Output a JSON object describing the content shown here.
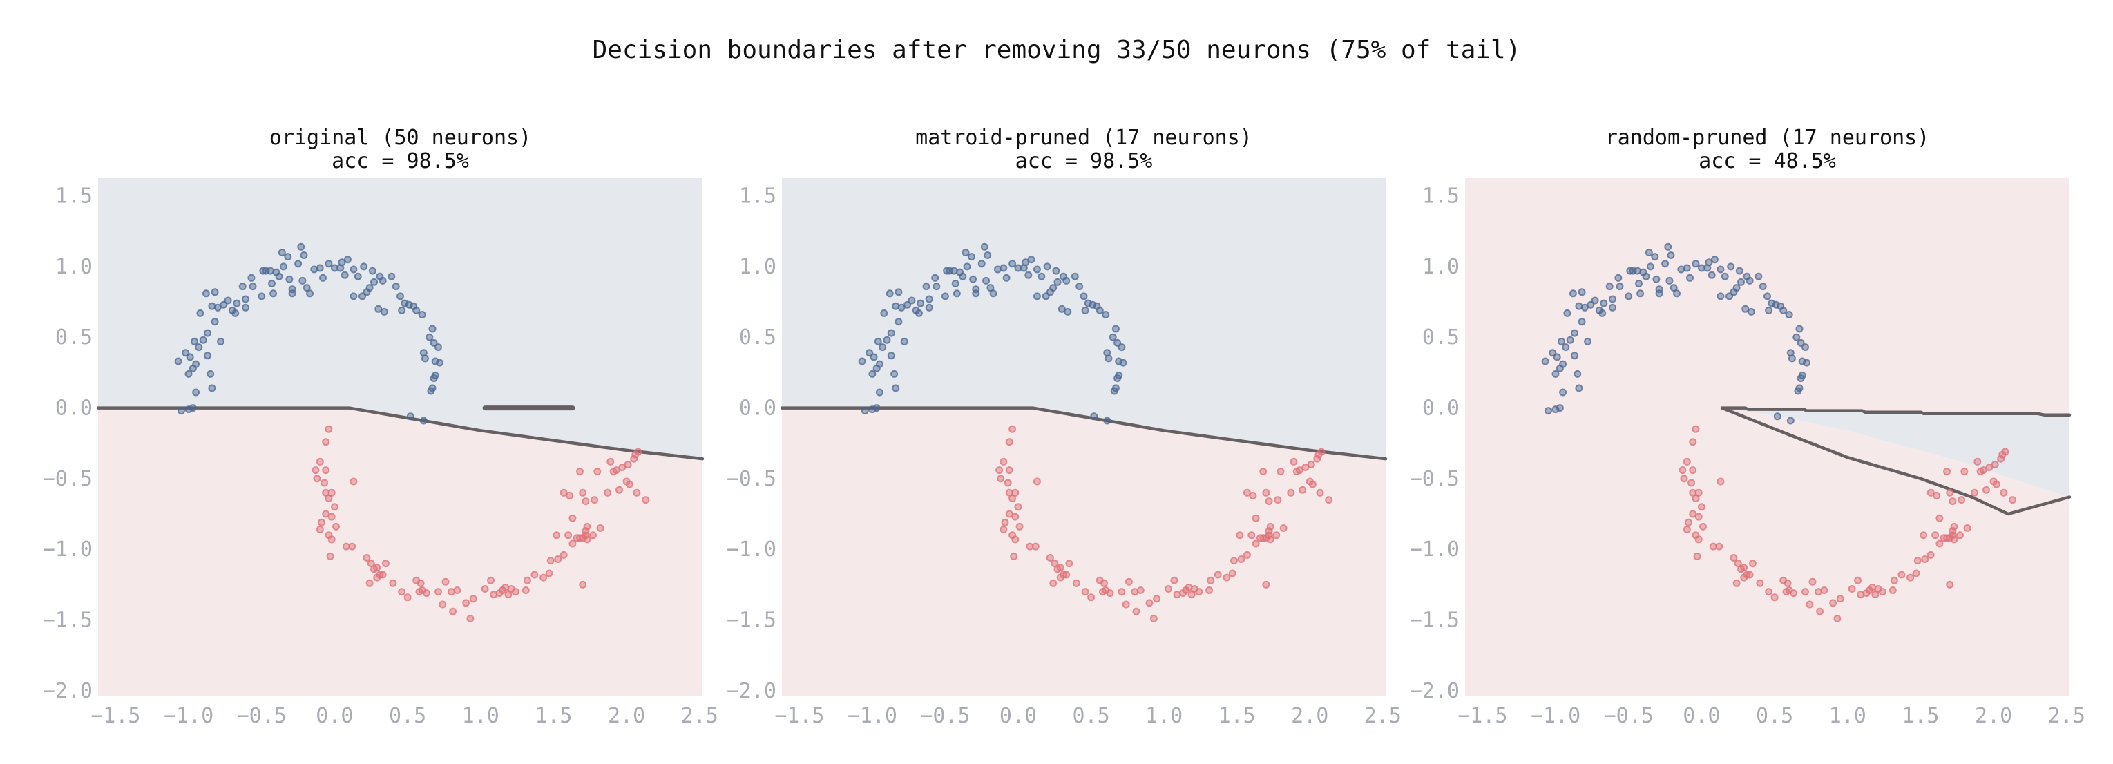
{
  "figure": {
    "suptitle": "Decision boundaries after removing 33/50 neurons (75% of tail)",
    "colors": {
      "class0_region": "#e5e8ed",
      "class1_region": "#f6e9ea",
      "class0_point": "#4a6591",
      "class1_point": "#de6f76",
      "boundary": "#666062",
      "tick_label": "#a9adb3",
      "title_text": "#111111"
    }
  },
  "chart_data": [
    {
      "type": "scatter",
      "title": "original (50 neurons)",
      "subtitle": "acc = 98.5%",
      "neurons": 50,
      "accuracy_pct": 98.5,
      "xlabel": "",
      "ylabel": "",
      "xlim": [
        -1.62,
        2.52
      ],
      "ylim": [
        -2.04,
        1.63
      ],
      "xticks": [
        "-1.5",
        "-1.0",
        "-0.5",
        "0.0",
        "0.5",
        "1.0",
        "1.5",
        "2.0",
        "2.5"
      ],
      "yticks": [
        "1.5",
        "1.0",
        "0.5",
        "0.0",
        "-0.5",
        "-1.0",
        "-1.5",
        "-2.0"
      ],
      "grid": false,
      "background_class": 0,
      "boundary": [
        [
          [
            -1.62,
            0.0
          ],
          [
            0.1,
            0.0
          ],
          [
            0.55,
            -0.08
          ],
          [
            1.0,
            -0.16
          ],
          [
            1.5,
            -0.23
          ],
          [
            2.0,
            -0.3
          ],
          [
            2.52,
            -0.36
          ]
        ],
        [
          [
            1.03,
            0.0
          ],
          [
            1.63,
            0.0
          ]
        ]
      ],
      "region_class1_polygon": [
        [
          -1.62,
          0.0
        ],
        [
          0.1,
          0.0
        ],
        [
          0.55,
          -0.08
        ],
        [
          1.0,
          -0.16
        ],
        [
          1.5,
          -0.23
        ],
        [
          2.0,
          -0.3
        ],
        [
          2.52,
          -0.36
        ],
        [
          2.52,
          -2.04
        ],
        [
          -1.62,
          -2.04
        ]
      ],
      "region_class0_polygon": []
    },
    {
      "type": "scatter",
      "title": "matroid-pruned (17 neurons)",
      "subtitle": "acc = 98.5%",
      "neurons": 17,
      "accuracy_pct": 98.5,
      "xlabel": "",
      "ylabel": "",
      "xlim": [
        -1.62,
        2.52
      ],
      "ylim": [
        -2.04,
        1.63
      ],
      "xticks": [
        "-1.5",
        "-1.0",
        "-0.5",
        "0.0",
        "0.5",
        "1.0",
        "1.5",
        "2.0",
        "2.5"
      ],
      "yticks": [
        "1.5",
        "1.0",
        "0.5",
        "0.0",
        "-0.5",
        "-1.0",
        "-1.5",
        "-2.0"
      ],
      "grid": false,
      "background_class": 0,
      "boundary": [
        [
          [
            -1.62,
            0.0
          ],
          [
            0.1,
            0.0
          ],
          [
            0.55,
            -0.08
          ],
          [
            1.0,
            -0.16
          ],
          [
            1.5,
            -0.23
          ],
          [
            2.0,
            -0.3
          ],
          [
            2.52,
            -0.36
          ]
        ]
      ],
      "region_class1_polygon": [
        [
          -1.62,
          0.0
        ],
        [
          0.1,
          0.0
        ],
        [
          0.55,
          -0.08
        ],
        [
          1.0,
          -0.16
        ],
        [
          1.5,
          -0.23
        ],
        [
          2.0,
          -0.3
        ],
        [
          2.52,
          -0.36
        ],
        [
          2.52,
          -2.04
        ],
        [
          -1.62,
          -2.04
        ]
      ],
      "region_class0_polygon": []
    },
    {
      "type": "scatter",
      "title": "random-pruned (17 neurons)",
      "subtitle": "acc = 48.5%",
      "neurons": 17,
      "accuracy_pct": 48.5,
      "xlabel": "",
      "ylabel": "",
      "xlim": [
        -1.62,
        2.52
      ],
      "ylim": [
        -2.04,
        1.63
      ],
      "xticks": [
        "-1.5",
        "-1.0",
        "-0.5",
        "0.0",
        "0.5",
        "1.0",
        "1.5",
        "2.0",
        "2.5"
      ],
      "yticks": [
        "1.5",
        "1.0",
        "0.5",
        "0.0",
        "-0.5",
        "-1.0",
        "-1.5",
        "-2.0"
      ],
      "grid": false,
      "background_class": 1,
      "boundary": [
        [
          [
            0.14,
            0.0
          ],
          [
            0.3,
            0.0
          ],
          [
            0.32,
            -0.01
          ],
          [
            0.7,
            -0.01
          ],
          [
            0.72,
            -0.02
          ],
          [
            1.1,
            -0.02
          ],
          [
            1.12,
            -0.03
          ],
          [
            1.5,
            -0.03
          ],
          [
            1.52,
            -0.04
          ],
          [
            2.3,
            -0.04
          ],
          [
            2.35,
            -0.05
          ],
          [
            2.52,
            -0.05
          ]
        ],
        [
          [
            0.14,
            0.0
          ],
          [
            0.6,
            -0.19
          ],
          [
            1.0,
            -0.35
          ],
          [
            1.5,
            -0.5
          ],
          [
            1.85,
            -0.63
          ],
          [
            2.1,
            -0.75
          ],
          [
            2.52,
            -0.63
          ]
        ]
      ],
      "region_class1_polygon": [],
      "region_class0_polygon": [
        [
          0.14,
          0.0
        ],
        [
          0.3,
          0.0
        ],
        [
          0.32,
          -0.01
        ],
        [
          0.7,
          -0.01
        ],
        [
          0.72,
          -0.02
        ],
        [
          1.1,
          -0.02
        ],
        [
          1.12,
          -0.03
        ],
        [
          1.5,
          -0.03
        ],
        [
          1.52,
          -0.04
        ],
        [
          2.3,
          -0.04
        ],
        [
          2.35,
          -0.05
        ],
        [
          2.52,
          -0.05
        ],
        [
          2.52,
          -0.63
        ],
        [
          2.1,
          -0.49
        ],
        [
          1.85,
          -0.4
        ],
        [
          1.5,
          -0.3
        ],
        [
          1.0,
          -0.16
        ],
        [
          0.6,
          -0.07
        ]
      ]
    }
  ],
  "points": {
    "class0": [
      [
        -1.07,
        0.33
      ],
      [
        -1.02,
        0.39
      ],
      [
        -0.99,
        0.36
      ],
      [
        -0.97,
        0.28
      ],
      [
        -1.0,
        0.24
      ],
      [
        -0.95,
        0.31
      ],
      [
        -0.93,
        0.43
      ],
      [
        -0.96,
        0.47
      ],
      [
        -0.9,
        0.48
      ],
      [
        -0.87,
        0.37
      ],
      [
        -0.85,
        0.24
      ],
      [
        -0.87,
        0.53
      ],
      [
        -0.82,
        0.61
      ],
      [
        -0.92,
        0.67
      ],
      [
        -0.78,
        0.47
      ],
      [
        -0.88,
        0.81
      ],
      [
        -0.82,
        0.82
      ],
      [
        -0.84,
        0.72
      ],
      [
        -0.8,
        0.71
      ],
      [
        -0.76,
        0.73
      ],
      [
        -0.7,
        0.69
      ],
      [
        -0.68,
        0.67
      ],
      [
        -0.67,
        0.74
      ],
      [
        -0.63,
        0.86
      ],
      [
        -0.61,
        0.77
      ],
      [
        -0.61,
        0.71
      ],
      [
        -0.57,
        0.92
      ],
      [
        -0.49,
        0.97
      ],
      [
        -0.47,
        0.97
      ],
      [
        -0.44,
        0.97
      ],
      [
        -0.43,
        0.88
      ],
      [
        -0.42,
        0.81
      ],
      [
        -0.4,
        0.96
      ],
      [
        -0.38,
        0.93
      ],
      [
        -0.35,
        1.0
      ],
      [
        -0.31,
        0.91
      ],
      [
        -0.36,
        1.1
      ],
      [
        -0.32,
        1.07
      ],
      [
        -0.29,
        0.81
      ],
      [
        -0.29,
        0.84
      ],
      [
        -0.25,
        1.02
      ],
      [
        -0.23,
        1.14
      ],
      [
        -0.21,
        1.08
      ],
      [
        -0.22,
        0.9
      ],
      [
        -0.19,
        0.85
      ],
      [
        -0.17,
        0.81
      ],
      [
        -0.1,
        0.99
      ],
      [
        -0.08,
        0.92
      ],
      [
        -0.04,
        1.02
      ],
      [
        0.0,
        0.99
      ],
      [
        0.04,
        0.99
      ],
      [
        0.07,
        0.94
      ],
      [
        0.05,
        1.03
      ],
      [
        0.13,
        0.98
      ],
      [
        0.16,
        0.93
      ],
      [
        0.2,
        1.0
      ],
      [
        0.13,
        0.79
      ],
      [
        0.19,
        0.79
      ],
      [
        0.22,
        0.82
      ],
      [
        0.27,
        0.89
      ],
      [
        0.31,
        0.93
      ],
      [
        0.33,
        0.9
      ],
      [
        0.3,
        0.7
      ],
      [
        0.34,
        0.68
      ],
      [
        0.45,
        0.79
      ],
      [
        0.48,
        0.74
      ],
      [
        0.46,
        0.69
      ],
      [
        0.54,
        0.72
      ],
      [
        0.51,
        0.73
      ],
      [
        0.56,
        0.69
      ],
      [
        0.6,
        0.66
      ],
      [
        0.67,
        0.56
      ],
      [
        0.65,
        0.5
      ],
      [
        0.62,
        0.35
      ],
      [
        0.68,
        0.46
      ],
      [
        0.61,
        0.39
      ],
      [
        0.69,
        0.33
      ],
      [
        0.72,
        0.32
      ],
      [
        0.71,
        0.43
      ],
      [
        0.69,
        0.23
      ],
      [
        0.68,
        0.21
      ],
      [
        0.67,
        0.14
      ],
      [
        0.66,
        0.12
      ],
      [
        0.52,
        -0.06
      ],
      [
        0.61,
        -0.09
      ],
      [
        -1.05,
        -0.02
      ],
      [
        -1.0,
        -0.01
      ],
      [
        -0.97,
        0.0
      ],
      [
        -0.95,
        0.11
      ],
      [
        -0.84,
        0.14
      ],
      [
        0.39,
        0.93
      ],
      [
        0.42,
        0.86
      ],
      [
        0.26,
        0.97
      ],
      [
        0.09,
        1.05
      ],
      [
        -0.14,
        0.98
      ],
      [
        -0.56,
        0.86
      ],
      [
        -0.73,
        0.76
      ],
      [
        -0.5,
        0.79
      ],
      [
        0.24,
        0.85
      ]
    ],
    "class1": [
      [
        -0.1,
        -0.38
      ],
      [
        -0.13,
        -0.44
      ],
      [
        -0.06,
        -0.44
      ],
      [
        -0.12,
        -0.5
      ],
      [
        -0.07,
        -0.53
      ],
      [
        -0.06,
        -0.6
      ],
      [
        -0.02,
        -0.6
      ],
      [
        -0.04,
        -0.64
      ],
      [
        0.0,
        -0.7
      ],
      [
        -0.06,
        -0.75
      ],
      [
        -0.02,
        -0.77
      ],
      [
        0.01,
        -0.84
      ],
      [
        -0.09,
        -0.81
      ],
      [
        -0.1,
        -0.86
      ],
      [
        -0.04,
        -0.9
      ],
      [
        -0.02,
        -0.93
      ],
      [
        -0.03,
        -1.05
      ],
      [
        -0.04,
        -0.15
      ],
      [
        -0.06,
        -0.24
      ],
      [
        0.13,
        -0.52
      ],
      [
        0.08,
        -0.98
      ],
      [
        0.12,
        -0.98
      ],
      [
        0.22,
        -1.06
      ],
      [
        0.25,
        -1.1
      ],
      [
        0.29,
        -1.13
      ],
      [
        0.27,
        -1.14
      ],
      [
        0.31,
        -1.18
      ],
      [
        0.24,
        -1.24
      ],
      [
        0.29,
        -1.2
      ],
      [
        0.35,
        -1.1
      ],
      [
        0.33,
        -1.18
      ],
      [
        0.4,
        -1.24
      ],
      [
        0.5,
        -1.34
      ],
      [
        0.46,
        -1.3
      ],
      [
        0.56,
        -1.22
      ],
      [
        0.59,
        -1.24
      ],
      [
        0.58,
        -1.3
      ],
      [
        0.6,
        -1.29
      ],
      [
        0.63,
        -1.31
      ],
      [
        0.71,
        -1.3
      ],
      [
        0.74,
        -1.39
      ],
      [
        0.81,
        -1.44
      ],
      [
        0.84,
        -1.29
      ],
      [
        0.9,
        -1.38
      ],
      [
        0.93,
        -1.49
      ],
      [
        0.95,
        -1.35
      ],
      [
        1.03,
        -1.28
      ],
      [
        1.07,
        -1.22
      ],
      [
        1.09,
        -1.32
      ],
      [
        1.13,
        -1.31
      ],
      [
        1.15,
        -1.29
      ],
      [
        1.17,
        -1.27
      ],
      [
        1.19,
        -1.32
      ],
      [
        1.21,
        -1.28
      ],
      [
        1.24,
        -1.3
      ],
      [
        1.31,
        -1.29
      ],
      [
        1.32,
        -1.22
      ],
      [
        1.37,
        -1.18
      ],
      [
        1.43,
        -1.2
      ],
      [
        1.47,
        -1.17
      ],
      [
        1.48,
        -1.08
      ],
      [
        1.53,
        -1.07
      ],
      [
        1.57,
        -1.04
      ],
      [
        1.63,
        -0.96
      ],
      [
        1.6,
        -0.9
      ],
      [
        1.66,
        -0.92
      ],
      [
        1.68,
        -0.92
      ],
      [
        1.7,
        -0.92
      ],
      [
        1.72,
        -0.9
      ],
      [
        1.73,
        -0.93
      ],
      [
        1.72,
        -0.87
      ],
      [
        1.73,
        -0.84
      ],
      [
        1.77,
        -0.9
      ],
      [
        1.82,
        -0.85
      ],
      [
        1.7,
        -1.25
      ],
      [
        1.52,
        -0.9
      ],
      [
        1.57,
        -0.6
      ],
      [
        1.61,
        -0.62
      ],
      [
        1.7,
        -0.6
      ],
      [
        1.72,
        -0.66
      ],
      [
        1.78,
        -0.65
      ],
      [
        1.87,
        -0.6
      ],
      [
        1.95,
        -0.58
      ],
      [
        2.0,
        -0.52
      ],
      [
        2.02,
        -0.54
      ],
      [
        2.07,
        -0.6
      ],
      [
        1.68,
        -0.45
      ],
      [
        1.8,
        -0.45
      ],
      [
        1.91,
        -0.45
      ],
      [
        1.93,
        -0.44
      ],
      [
        1.97,
        -0.42
      ],
      [
        2.01,
        -0.4
      ],
      [
        2.05,
        -0.36
      ],
      [
        2.08,
        -0.31
      ],
      [
        2.06,
        -0.33
      ],
      [
        2.13,
        -0.65
      ],
      [
        1.63,
        -0.78
      ],
      [
        1.89,
        -0.38
      ],
      [
        0.8,
        -1.3
      ],
      [
        0.76,
        -1.23
      ]
    ]
  }
}
